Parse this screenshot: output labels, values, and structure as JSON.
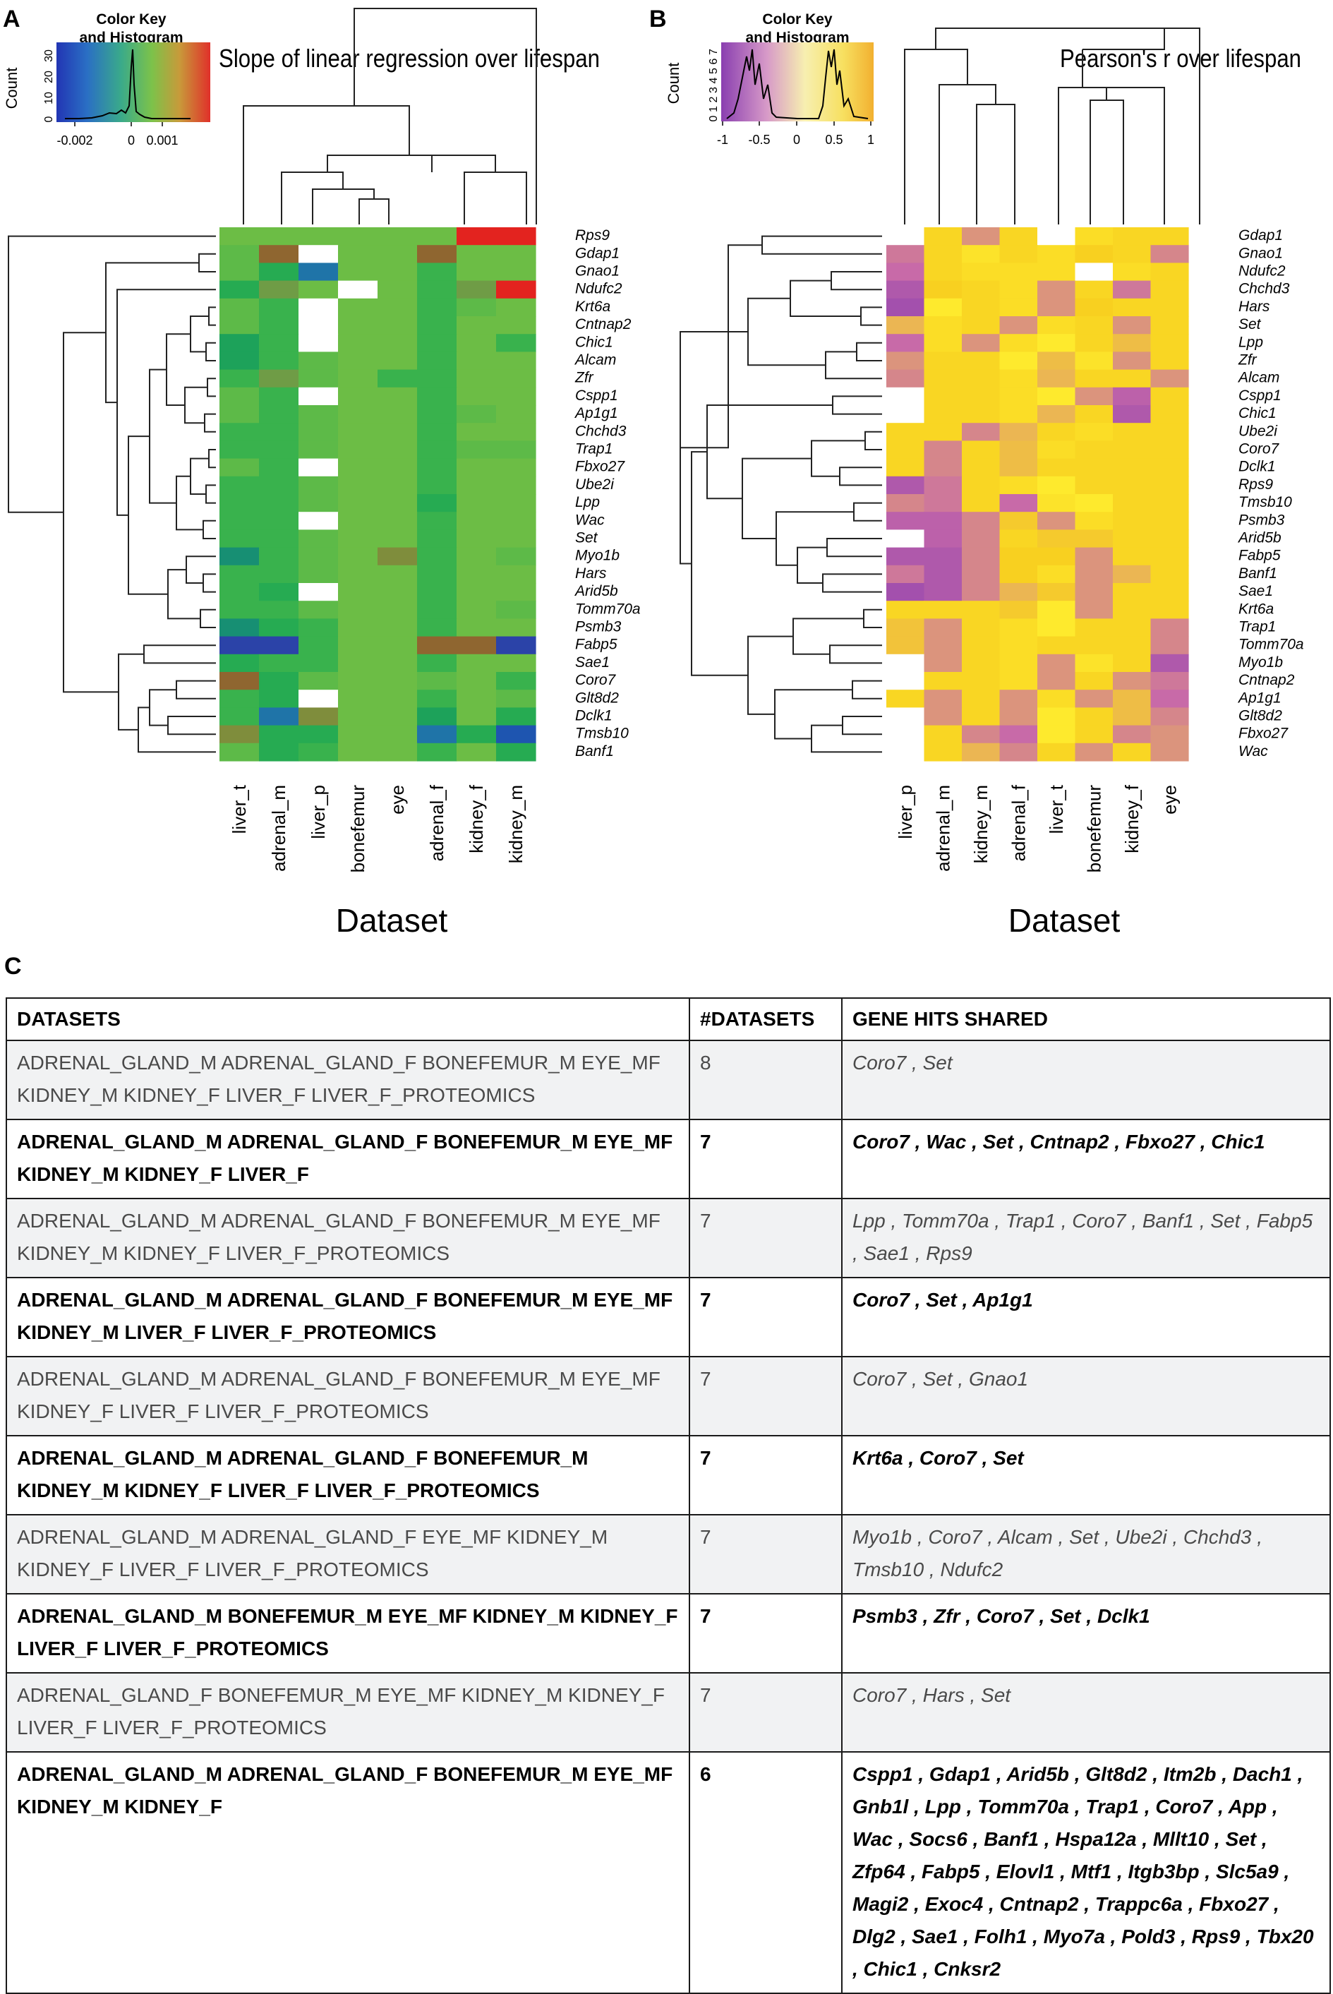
{
  "panel_a": {
    "label": "A",
    "title": "Slope of linear regression over lifespan",
    "key_title": "Color Key",
    "key_subtitle": "and Histogram",
    "key_ylabel": "Count",
    "key_yticks": [
      "0",
      "10",
      "20",
      "30"
    ],
    "key_xticks": [
      "-0.002",
      "0",
      "0.001"
    ],
    "xlabel": "Dataset",
    "columns": [
      "liver_t",
      "adrenal_m",
      "liver_p",
      "bonefemur",
      "eye",
      "adrenal_f",
      "kidney_f",
      "kidney_m"
    ],
    "rows": [
      "Rps9",
      "Gdap1",
      "Gnao1",
      "Ndufc2",
      "Krt6a",
      "Cntnap2",
      "Chic1",
      "Alcam",
      "Zfr",
      "Cspp1",
      "Ap1g1",
      "Chchd3",
      "Trap1",
      "Fbxo27",
      "Ube2i",
      "Lpp",
      "Wac",
      "Set",
      "Myo1b",
      "Hars",
      "Arid5b",
      "Tomm70a",
      "Psmb3",
      "Fabp5",
      "Sae1",
      "Coro7",
      "Glt8d2",
      "Dclk1",
      "Tmsb10",
      "Banf1"
    ]
  },
  "panel_b": {
    "label": "B",
    "title": "Pearson's r over lifespan",
    "key_title": "Color Key",
    "key_subtitle": "and Histogram",
    "key_ylabel": "Count",
    "key_yticks": [
      "0",
      "1",
      "2",
      "3",
      "4",
      "5",
      "6",
      "7"
    ],
    "key_xticks": [
      "-1",
      "-0.5",
      "0",
      "0.5",
      "1"
    ],
    "xlabel": "Dataset",
    "columns": [
      "liver_p",
      "adrenal_m",
      "kidney_m",
      "adrenal_f",
      "liver_t",
      "bonefemur",
      "kidney_f",
      "eye"
    ],
    "rows": [
      "Gdap1",
      "Gnao1",
      "Ndufc2",
      "Chchd3",
      "Hars",
      "Set",
      "Lpp",
      "Zfr",
      "Alcam",
      "Cspp1",
      "Chic1",
      "Ube2i",
      "Coro7",
      "Dclk1",
      "Rps9",
      "Tmsb10",
      "Psmb3",
      "Arid5b",
      "Fabp5",
      "Banf1",
      "Sae1",
      "Krt6a",
      "Trap1",
      "Tomm70a",
      "Myo1b",
      "Cntnap2",
      "Ap1g1",
      "Glt8d2",
      "Fbxo27",
      "Wac"
    ]
  },
  "chart_data": [
    {
      "type": "heatmap",
      "title": "Slope of linear regression over lifespan",
      "xlabel": "Dataset",
      "ylabel": "",
      "color_scale": {
        "min": -0.003,
        "max": 0.002,
        "colors": [
          "#1e2fa8",
          "#1a9e55",
          "#72bf44",
          "#d62a1e"
        ]
      },
      "x": [
        "liver_t",
        "adrenal_m",
        "liver_p",
        "bonefemur",
        "eye",
        "adrenal_f",
        "kidney_f",
        "kidney_m"
      ],
      "y": [
        "Rps9",
        "Gdap1",
        "Gnao1",
        "Ndufc2",
        "Krt6a",
        "Cntnap2",
        "Chic1",
        "Alcam",
        "Zfr",
        "Cspp1",
        "Ap1g1",
        "Chchd3",
        "Trap1",
        "Fbxo27",
        "Ube2i",
        "Lpp",
        "Wac",
        "Set",
        "Myo1b",
        "Hars",
        "Arid5b",
        "Tomm70a",
        "Psmb3",
        "Fabp5",
        "Sae1",
        "Coro7",
        "Glt8d2",
        "Dclk1",
        "Tmsb10",
        "Banf1"
      ],
      "values": [
        [
          0.0,
          0.0,
          0.0,
          0.0,
          0.0,
          0.0,
          0.0019,
          0.0019
        ],
        [
          -0.0001,
          0.0008,
          null,
          0.0,
          0.0,
          0.0006,
          0.0,
          0.0
        ],
        [
          -0.0001,
          -0.0004,
          -0.0018,
          0.0,
          0.0,
          -0.0002,
          0.0,
          0.0
        ],
        [
          -0.0004,
          0.0003,
          0.0,
          null,
          0.0,
          -0.0002,
          0.0002,
          0.0016
        ],
        [
          -0.0001,
          -0.0003,
          null,
          0.0,
          0.0,
          -0.0002,
          -0.0001,
          0.0
        ],
        [
          -0.0001,
          -0.0002,
          null,
          0.0,
          0.0,
          -0.0002,
          0.0,
          0.0
        ],
        [
          -0.0006,
          -0.0003,
          null,
          0.0,
          0.0,
          -0.0002,
          0.0,
          -0.0003
        ],
        [
          -0.0007,
          -0.0002,
          -0.0001,
          0.0,
          0.0,
          -0.0003,
          0.0,
          0.0
        ],
        [
          -0.0002,
          0.0003,
          -0.0001,
          0.0,
          -0.0002,
          -0.0002,
          0.0,
          0.0
        ],
        [
          -0.0001,
          -0.0002,
          null,
          0.0,
          0.0,
          -0.0002,
          0.0,
          0.0
        ],
        [
          -0.0001,
          -0.0002,
          -0.0001,
          0.0,
          0.0,
          -0.0002,
          -0.0001,
          0.0
        ],
        [
          -0.0002,
          -0.0002,
          -0.0001,
          0.0,
          0.0,
          -0.0002,
          0.0,
          0.0
        ],
        [
          -0.0002,
          -0.0002,
          -0.0001,
          0.0,
          0.0,
          -0.0002,
          -0.0001,
          -0.0001
        ],
        [
          -0.0001,
          -0.0003,
          null,
          0.0,
          0.0,
          -0.0002,
          0.0,
          0.0
        ],
        [
          -0.0002,
          -0.0002,
          -0.0001,
          0.0,
          0.0,
          -0.0003,
          0.0,
          0.0
        ],
        [
          -0.0002,
          -0.0003,
          -0.0001,
          0.0,
          0.0,
          -0.0005,
          0.0,
          0.0
        ],
        [
          -0.0003,
          -0.0002,
          null,
          0.0,
          0.0,
          -0.0003,
          0.0,
          0.0
        ],
        [
          -0.0002,
          -0.0002,
          -0.0001,
          0.0,
          0.0,
          -0.0002,
          0.0,
          0.0
        ],
        [
          -0.001,
          -0.0003,
          -0.0001,
          0.0,
          0.0004,
          -0.0002,
          0.0,
          -0.0001
        ],
        [
          -0.0003,
          -0.0002,
          -0.0001,
          0.0,
          0.0,
          -0.0003,
          0.0,
          0.0
        ],
        [
          -0.0003,
          -0.0004,
          null,
          0.0,
          0.0,
          -0.0002,
          0.0,
          0.0
        ],
        [
          -0.0003,
          -0.0003,
          -0.0001,
          0.0,
          0.0,
          -0.0002,
          0.0,
          -0.0001
        ],
        [
          -0.0012,
          -0.0005,
          -0.0002,
          0.0,
          0.0,
          -0.0003,
          0.0,
          0.0
        ],
        [
          -0.003,
          -0.0026,
          -0.0003,
          0.0,
          0.0,
          0.0009,
          0.0007,
          -0.0026
        ],
        [
          -0.0004,
          -0.0003,
          -0.0002,
          0.0,
          0.0,
          -0.0003,
          0.0,
          0.0
        ],
        [
          0.0006,
          -0.0004,
          -0.0001,
          0.0,
          0.0,
          -0.0001,
          0.0,
          -0.0003
        ],
        [
          -0.0002,
          -0.0005,
          null,
          0.0,
          0.0,
          -0.0003,
          0.0,
          -0.0001
        ],
        [
          -0.0003,
          -0.0015,
          0.0004,
          0.0,
          0.0,
          -0.0007,
          0.0,
          -0.0004
        ],
        [
          0.0005,
          -0.0005,
          -0.0004,
          0.0,
          0.0,
          -0.0016,
          -0.0004,
          -0.0024
        ],
        [
          -0.0001,
          -0.0004,
          -0.0002,
          0.0,
          0.0,
          -0.0003,
          0.0,
          -0.0004
        ]
      ]
    },
    {
      "type": "heatmap",
      "title": "Pearson's r over lifespan",
      "xlabel": "Dataset",
      "ylabel": "",
      "color_scale": {
        "min": -1,
        "max": 1,
        "colors": [
          "#8a3fb0",
          "#c86aa8",
          "#e8b060",
          "#f8d020",
          "#fff030"
        ]
      },
      "x": [
        "liver_p",
        "adrenal_m",
        "kidney_m",
        "adrenal_f",
        "liver_t",
        "bonefemur",
        "kidney_f",
        "eye"
      ],
      "y": [
        "Gdap1",
        "Gnao1",
        "Ndufc2",
        "Chchd3",
        "Hars",
        "Set",
        "Lpp",
        "Zfr",
        "Alcam",
        "Cspp1",
        "Chic1",
        "Ube2i",
        "Coro7",
        "Dclk1",
        "Rps9",
        "Tmsb10",
        "Psmb3",
        "Arid5b",
        "Fabp5",
        "Banf1",
        "Sae1",
        "Krt6a",
        "Trap1",
        "Tomm70a",
        "Myo1b",
        "Cntnap2",
        "Ap1g1",
        "Glt8d2",
        "Fbxo27",
        "Wac"
      ],
      "values": [
        [
          null,
          0.6,
          -0.2,
          0.6,
          null,
          0.7,
          0.6,
          0.6
        ],
        [
          -0.4,
          0.6,
          0.8,
          0.6,
          0.7,
          0.5,
          0.6,
          -0.3
        ],
        [
          -0.5,
          0.6,
          0.7,
          0.7,
          0.7,
          null,
          0.7,
          0.6
        ],
        [
          -0.7,
          0.5,
          0.6,
          0.7,
          -0.2,
          0.6,
          -0.4,
          0.6
        ],
        [
          -0.8,
          0.9,
          0.6,
          0.7,
          -0.2,
          0.5,
          0.6,
          0.6
        ],
        [
          0.1,
          0.7,
          0.6,
          -0.2,
          0.7,
          0.6,
          -0.2,
          0.6
        ],
        [
          -0.5,
          0.7,
          -0.2,
          0.7,
          0.9,
          0.6,
          0.2,
          0.6
        ],
        [
          -0.2,
          0.6,
          0.6,
          0.9,
          0.2,
          0.8,
          -0.2,
          0.6
        ],
        [
          -0.3,
          0.6,
          0.6,
          0.7,
          0.1,
          0.6,
          0.6,
          -0.2
        ],
        [
          null,
          0.6,
          0.6,
          0.7,
          0.9,
          -0.2,
          -0.6,
          0.6
        ],
        [
          null,
          0.6,
          0.6,
          0.7,
          0.1,
          0.6,
          -0.7,
          0.6
        ],
        [
          0.6,
          0.6,
          -0.3,
          0.1,
          0.6,
          0.7,
          0.6,
          0.6
        ],
        [
          0.6,
          -0.3,
          0.6,
          0.2,
          0.7,
          0.6,
          0.6,
          0.6
        ],
        [
          0.6,
          -0.3,
          0.6,
          0.2,
          0.6,
          0.6,
          0.6,
          0.6
        ],
        [
          -0.7,
          -0.4,
          0.6,
          0.7,
          0.9,
          0.6,
          0.6,
          0.6
        ],
        [
          -0.3,
          -0.4,
          0.6,
          -0.5,
          0.8,
          0.9,
          0.6,
          0.6
        ],
        [
          -0.6,
          -0.6,
          -0.3,
          0.4,
          -0.2,
          0.7,
          0.6,
          0.6
        ],
        [
          null,
          -0.6,
          -0.3,
          0.6,
          0.4,
          0.4,
          0.6,
          0.6
        ],
        [
          -0.7,
          -0.7,
          -0.3,
          0.5,
          0.5,
          -0.2,
          0.6,
          0.6
        ],
        [
          -0.4,
          -0.7,
          -0.3,
          0.5,
          0.7,
          -0.2,
          0.1,
          0.6
        ],
        [
          -0.8,
          -0.7,
          -0.3,
          0.1,
          0.4,
          -0.2,
          0.6,
          0.6
        ],
        [
          0.6,
          0.6,
          0.6,
          0.4,
          0.9,
          -0.2,
          0.6,
          0.6
        ],
        [
          0.3,
          -0.2,
          0.6,
          0.7,
          0.9,
          0.6,
          0.6,
          -0.3
        ],
        [
          0.3,
          -0.2,
          0.6,
          0.7,
          0.6,
          0.6,
          0.6,
          -0.3
        ],
        [
          null,
          -0.2,
          0.6,
          0.7,
          -0.2,
          0.8,
          0.6,
          -0.7
        ],
        [
          null,
          0.6,
          0.6,
          0.7,
          -0.2,
          0.6,
          -0.2,
          -0.4
        ],
        [
          0.6,
          -0.2,
          0.6,
          -0.2,
          0.7,
          -0.2,
          0.2,
          -0.5
        ],
        [
          null,
          -0.2,
          0.6,
          -0.2,
          0.9,
          0.6,
          0.2,
          -0.3
        ],
        [
          null,
          0.6,
          -0.3,
          -0.5,
          0.9,
          0.6,
          -0.3,
          -0.2
        ],
        [
          null,
          0.6,
          0.1,
          -0.3,
          0.6,
          -0.2,
          0.6,
          -0.2
        ]
      ]
    }
  ],
  "panel_c": {
    "label": "C",
    "headers": [
      "DATASETS",
      "#DATASETS",
      "GENE HITS SHARED"
    ],
    "rows": [
      {
        "datasets": "ADRENAL_GLAND_M ADRENAL_GLAND_F BONEFEMUR_M EYE_MF KIDNEY_M KIDNEY_F LIVER_F LIVER_F_PROTEOMICS",
        "count": "8",
        "genes": "Coro7 , Set",
        "style": "shaded"
      },
      {
        "datasets": "ADRENAL_GLAND_M ADRENAL_GLAND_F BONEFEMUR_M EYE_MF KIDNEY_M KIDNEY_F LIVER_F",
        "count": "7",
        "genes": "Coro7 , Wac , Set , Cntnap2 , Fbxo27 , Chic1",
        "style": "bold"
      },
      {
        "datasets": "ADRENAL_GLAND_M ADRENAL_GLAND_F BONEFEMUR_M EYE_MF KIDNEY_M KIDNEY_F LIVER_F_PROTEOMICS",
        "count": "7",
        "genes": "Lpp , Tomm70a , Trap1 , Coro7 , Banf1 , Set , Fabp5 , Sae1 , Rps9",
        "style": "shaded"
      },
      {
        "datasets": "ADRENAL_GLAND_M ADRENAL_GLAND_F BONEFEMUR_M EYE_MF KIDNEY_M LIVER_F LIVER_F_PROTEOMICS",
        "count": "7",
        "genes": "Coro7 , Set , Ap1g1",
        "style": "bold"
      },
      {
        "datasets": "ADRENAL_GLAND_M ADRENAL_GLAND_F BONEFEMUR_M EYE_MF KIDNEY_F LIVER_F LIVER_F_PROTEOMICS",
        "count": "7",
        "genes": "Coro7 , Set , Gnao1",
        "style": "shaded"
      },
      {
        "datasets": "ADRENAL_GLAND_M ADRENAL_GLAND_F BONEFEMUR_M KIDNEY_M KIDNEY_F LIVER_F LIVER_F_PROTEOMICS",
        "count": "7",
        "genes": "Krt6a , Coro7 , Set",
        "style": "bold"
      },
      {
        "datasets": "ADRENAL_GLAND_M ADRENAL_GLAND_F EYE_MF KIDNEY_M KIDNEY_F LIVER_F LIVER_F_PROTEOMICS",
        "count": "7",
        "genes": "Myo1b , Coro7 , Alcam , Set , Ube2i , Chchd3 , Tmsb10 , Ndufc2",
        "style": "shaded"
      },
      {
        "datasets": "ADRENAL_GLAND_M BONEFEMUR_M EYE_MF KIDNEY_M KIDNEY_F LIVER_F LIVER_F_PROTEOMICS",
        "count": "7",
        "genes": "Psmb3 , Zfr , Coro7 , Set , Dclk1",
        "style": "bold"
      },
      {
        "datasets": "ADRENAL_GLAND_F BONEFEMUR_M EYE_MF KIDNEY_M KIDNEY_F LIVER_F LIVER_F_PROTEOMICS",
        "count": "7",
        "genes": "Coro7 , Hars , Set",
        "style": "shaded"
      },
      {
        "datasets": "ADRENAL_GLAND_M ADRENAL_GLAND_F BONEFEMUR_M EYE_MF KIDNEY_M KIDNEY_F",
        "count": "6",
        "genes": "Cspp1 , Gdap1 , Arid5b , Glt8d2 , Itm2b , Dach1 , Gnb1l , Lpp , Tomm70a , Trap1 , Coro7 , App , Wac , Socs6 , Banf1 , Hspa12a , Mllt10 , Set , Zfp64 , Fabp5 , Elovl1 , Mtf1 , Itgb3bp , Slc5a9 , Magi2 , Exoc4 , Cntnap2 , Trappc6a , Fbxo27 , Dlg2 , Sae1 , Folh1 , Myo7a , Pold3 , Rps9 , Tbx20 , Chic1 , Cnksr2",
        "style": "bold"
      }
    ]
  }
}
